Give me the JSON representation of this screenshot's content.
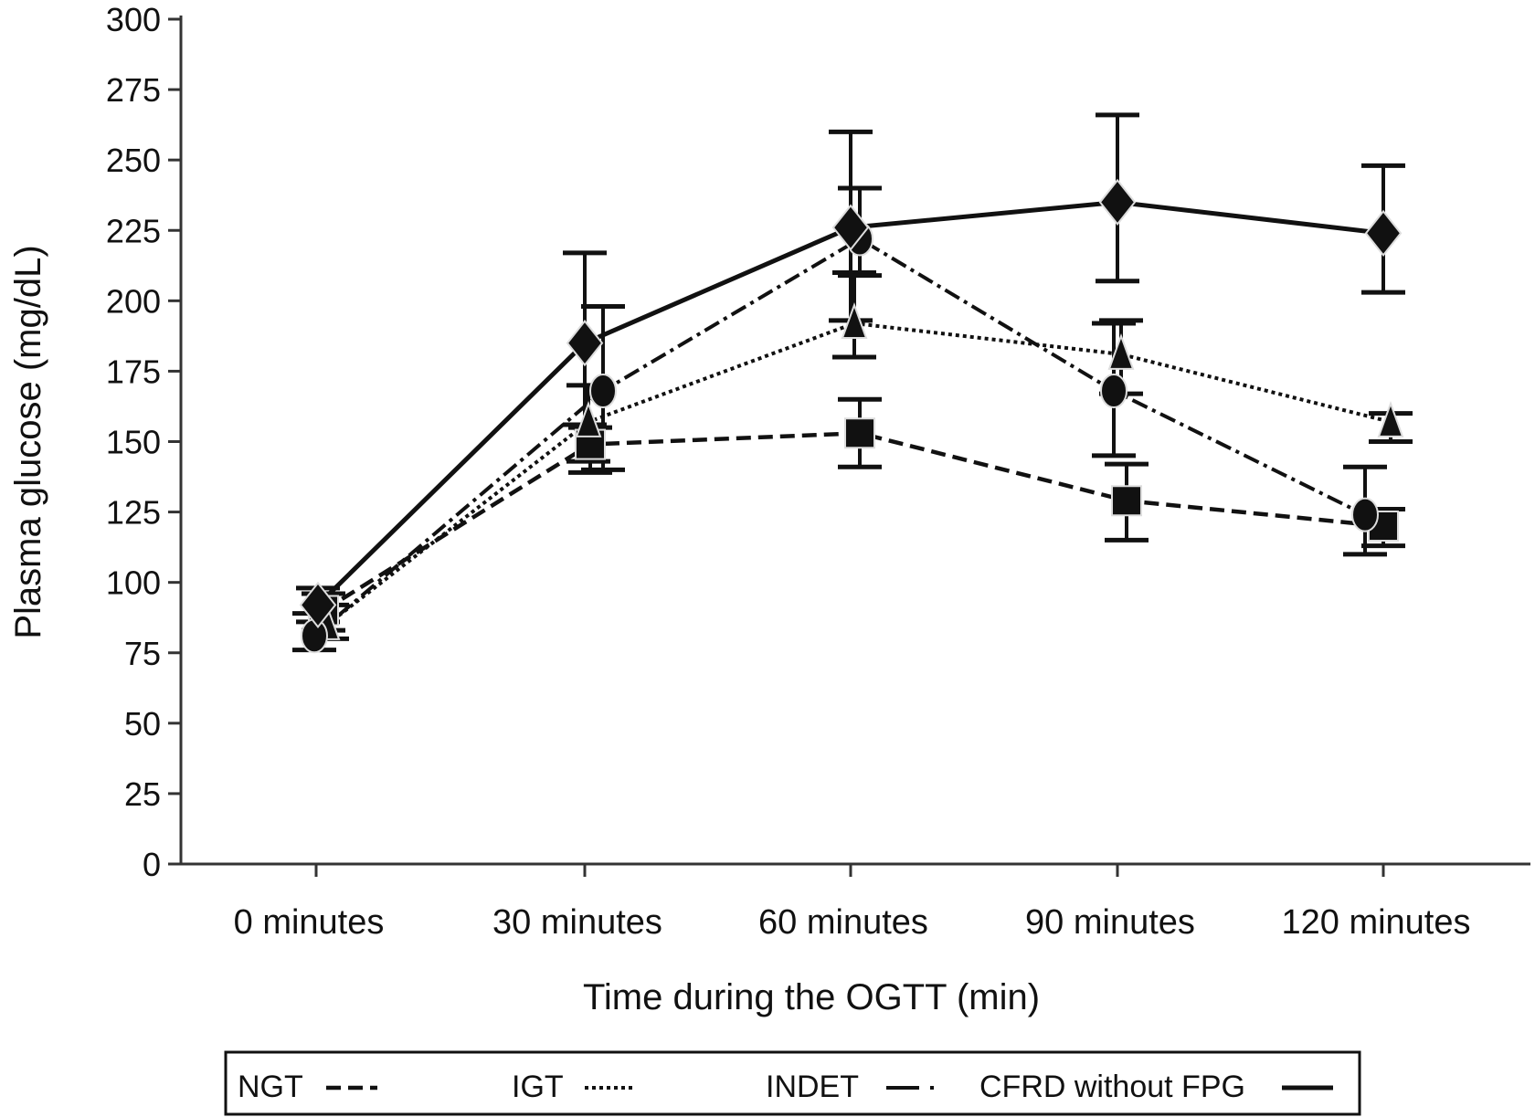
{
  "chart_data": {
    "type": "line",
    "title": "",
    "xlabel": "Time during the OGTT (min)",
    "ylabel": "Plasma glucose (mg/dL)",
    "ylim": [
      0,
      300
    ],
    "yticks": [
      0,
      25,
      50,
      75,
      100,
      125,
      150,
      175,
      200,
      225,
      250,
      275,
      300
    ],
    "categories": [
      "0 minutes",
      "30 minutes",
      "60 minutes",
      "90 minutes",
      "120 minutes"
    ],
    "grid": false,
    "legend_position": "bottom",
    "series": [
      {
        "name": "NGT",
        "style": "dashed",
        "marker": "square",
        "color": "#111111",
        "values": [
          90,
          149,
          153,
          129,
          120
        ],
        "err_upper": [
          96,
          155,
          165,
          142,
          126
        ],
        "err_lower": [
          83,
          139,
          141,
          115,
          113
        ]
      },
      {
        "name": "IGT",
        "style": "dotted",
        "marker": "triangle",
        "color": "#111111",
        "values": [
          85,
          157,
          192,
          181,
          157
        ],
        "err_upper": [
          92,
          170,
          210,
          193,
          160
        ],
        "err_lower": [
          80,
          143,
          180,
          167,
          150
        ]
      },
      {
        "name": "INDET",
        "style": "dash-dot",
        "marker": "circle",
        "color": "#111111",
        "values": [
          81,
          168,
          222,
          168,
          124
        ],
        "err_upper": [
          89,
          198,
          240,
          192,
          141
        ],
        "err_lower": [
          76,
          140,
          209,
          145,
          110
        ]
      },
      {
        "name": "CFRD without FPG",
        "style": "solid",
        "marker": "diamond",
        "color": "#111111",
        "values": [
          92,
          185,
          226,
          235,
          224
        ],
        "err_upper": [
          98,
          217,
          260,
          266,
          248
        ],
        "err_lower": [
          86,
          156,
          193,
          207,
          203
        ]
      }
    ]
  }
}
